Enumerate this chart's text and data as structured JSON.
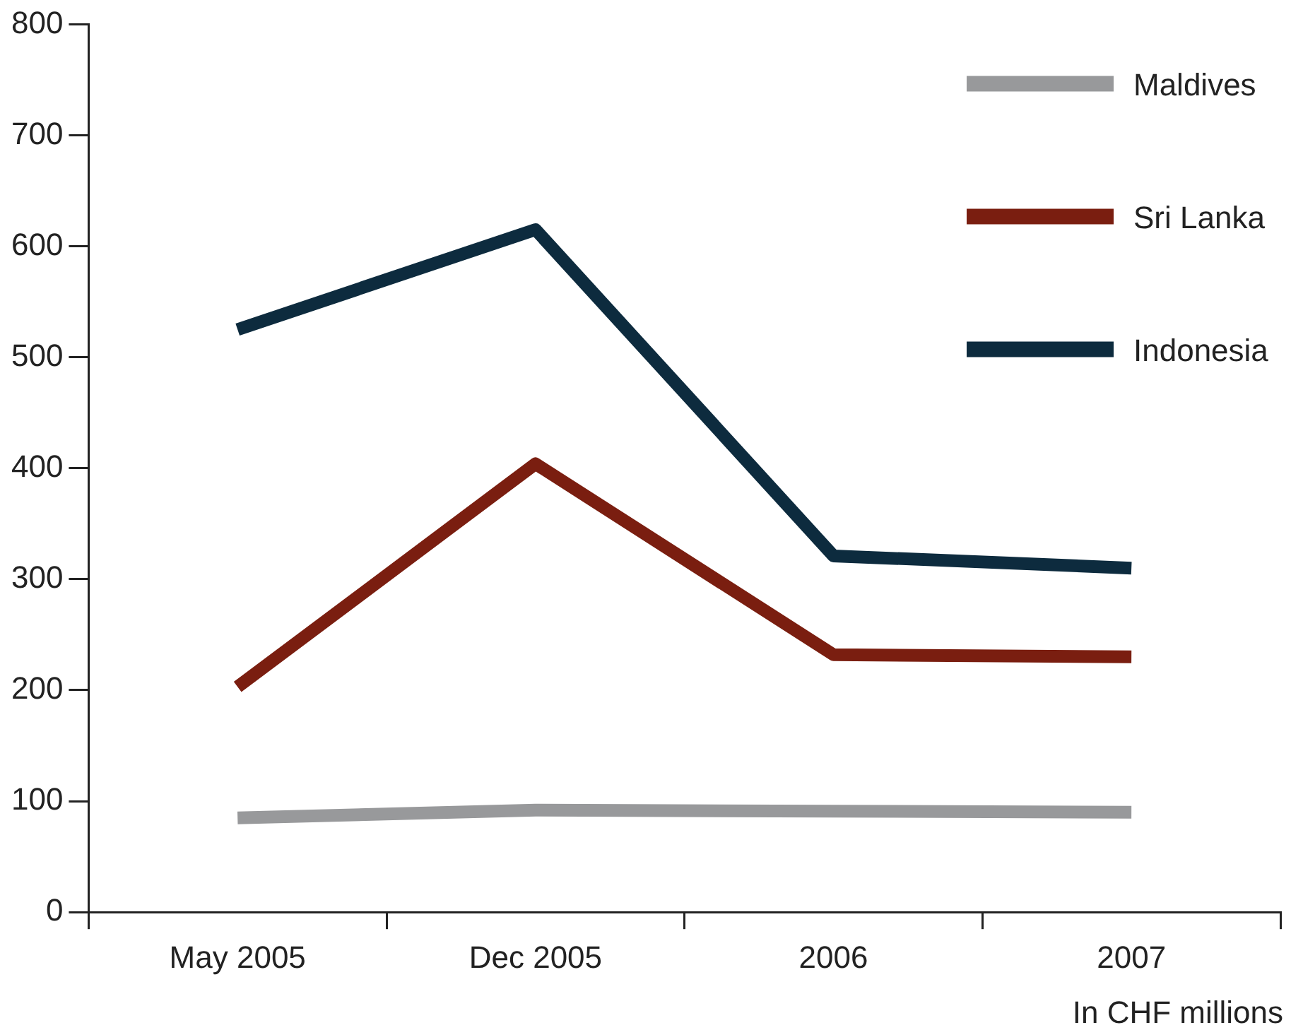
{
  "chart_data": {
    "type": "line",
    "categories": [
      "May 2005",
      "Dec 2005",
      "2006",
      "2007"
    ],
    "series": [
      {
        "name": "Maldives",
        "color": "#98999b",
        "values": [
          85,
          92,
          91,
          90
        ]
      },
      {
        "name": "Sri Lanka",
        "color": "#7a1e10",
        "values": [
          203,
          404,
          232,
          230
        ]
      },
      {
        "name": "Indonesia",
        "color": "#0d2b3e",
        "values": [
          525,
          615,
          321,
          310
        ]
      }
    ],
    "ylim": [
      0,
      800
    ],
    "yticks": [
      0,
      100,
      200,
      300,
      400,
      500,
      600,
      700,
      800
    ],
    "grid": false,
    "legend": "top right",
    "marker": "none",
    "line_style": "solid",
    "annotations": [
      "In CHF millions"
    ]
  }
}
